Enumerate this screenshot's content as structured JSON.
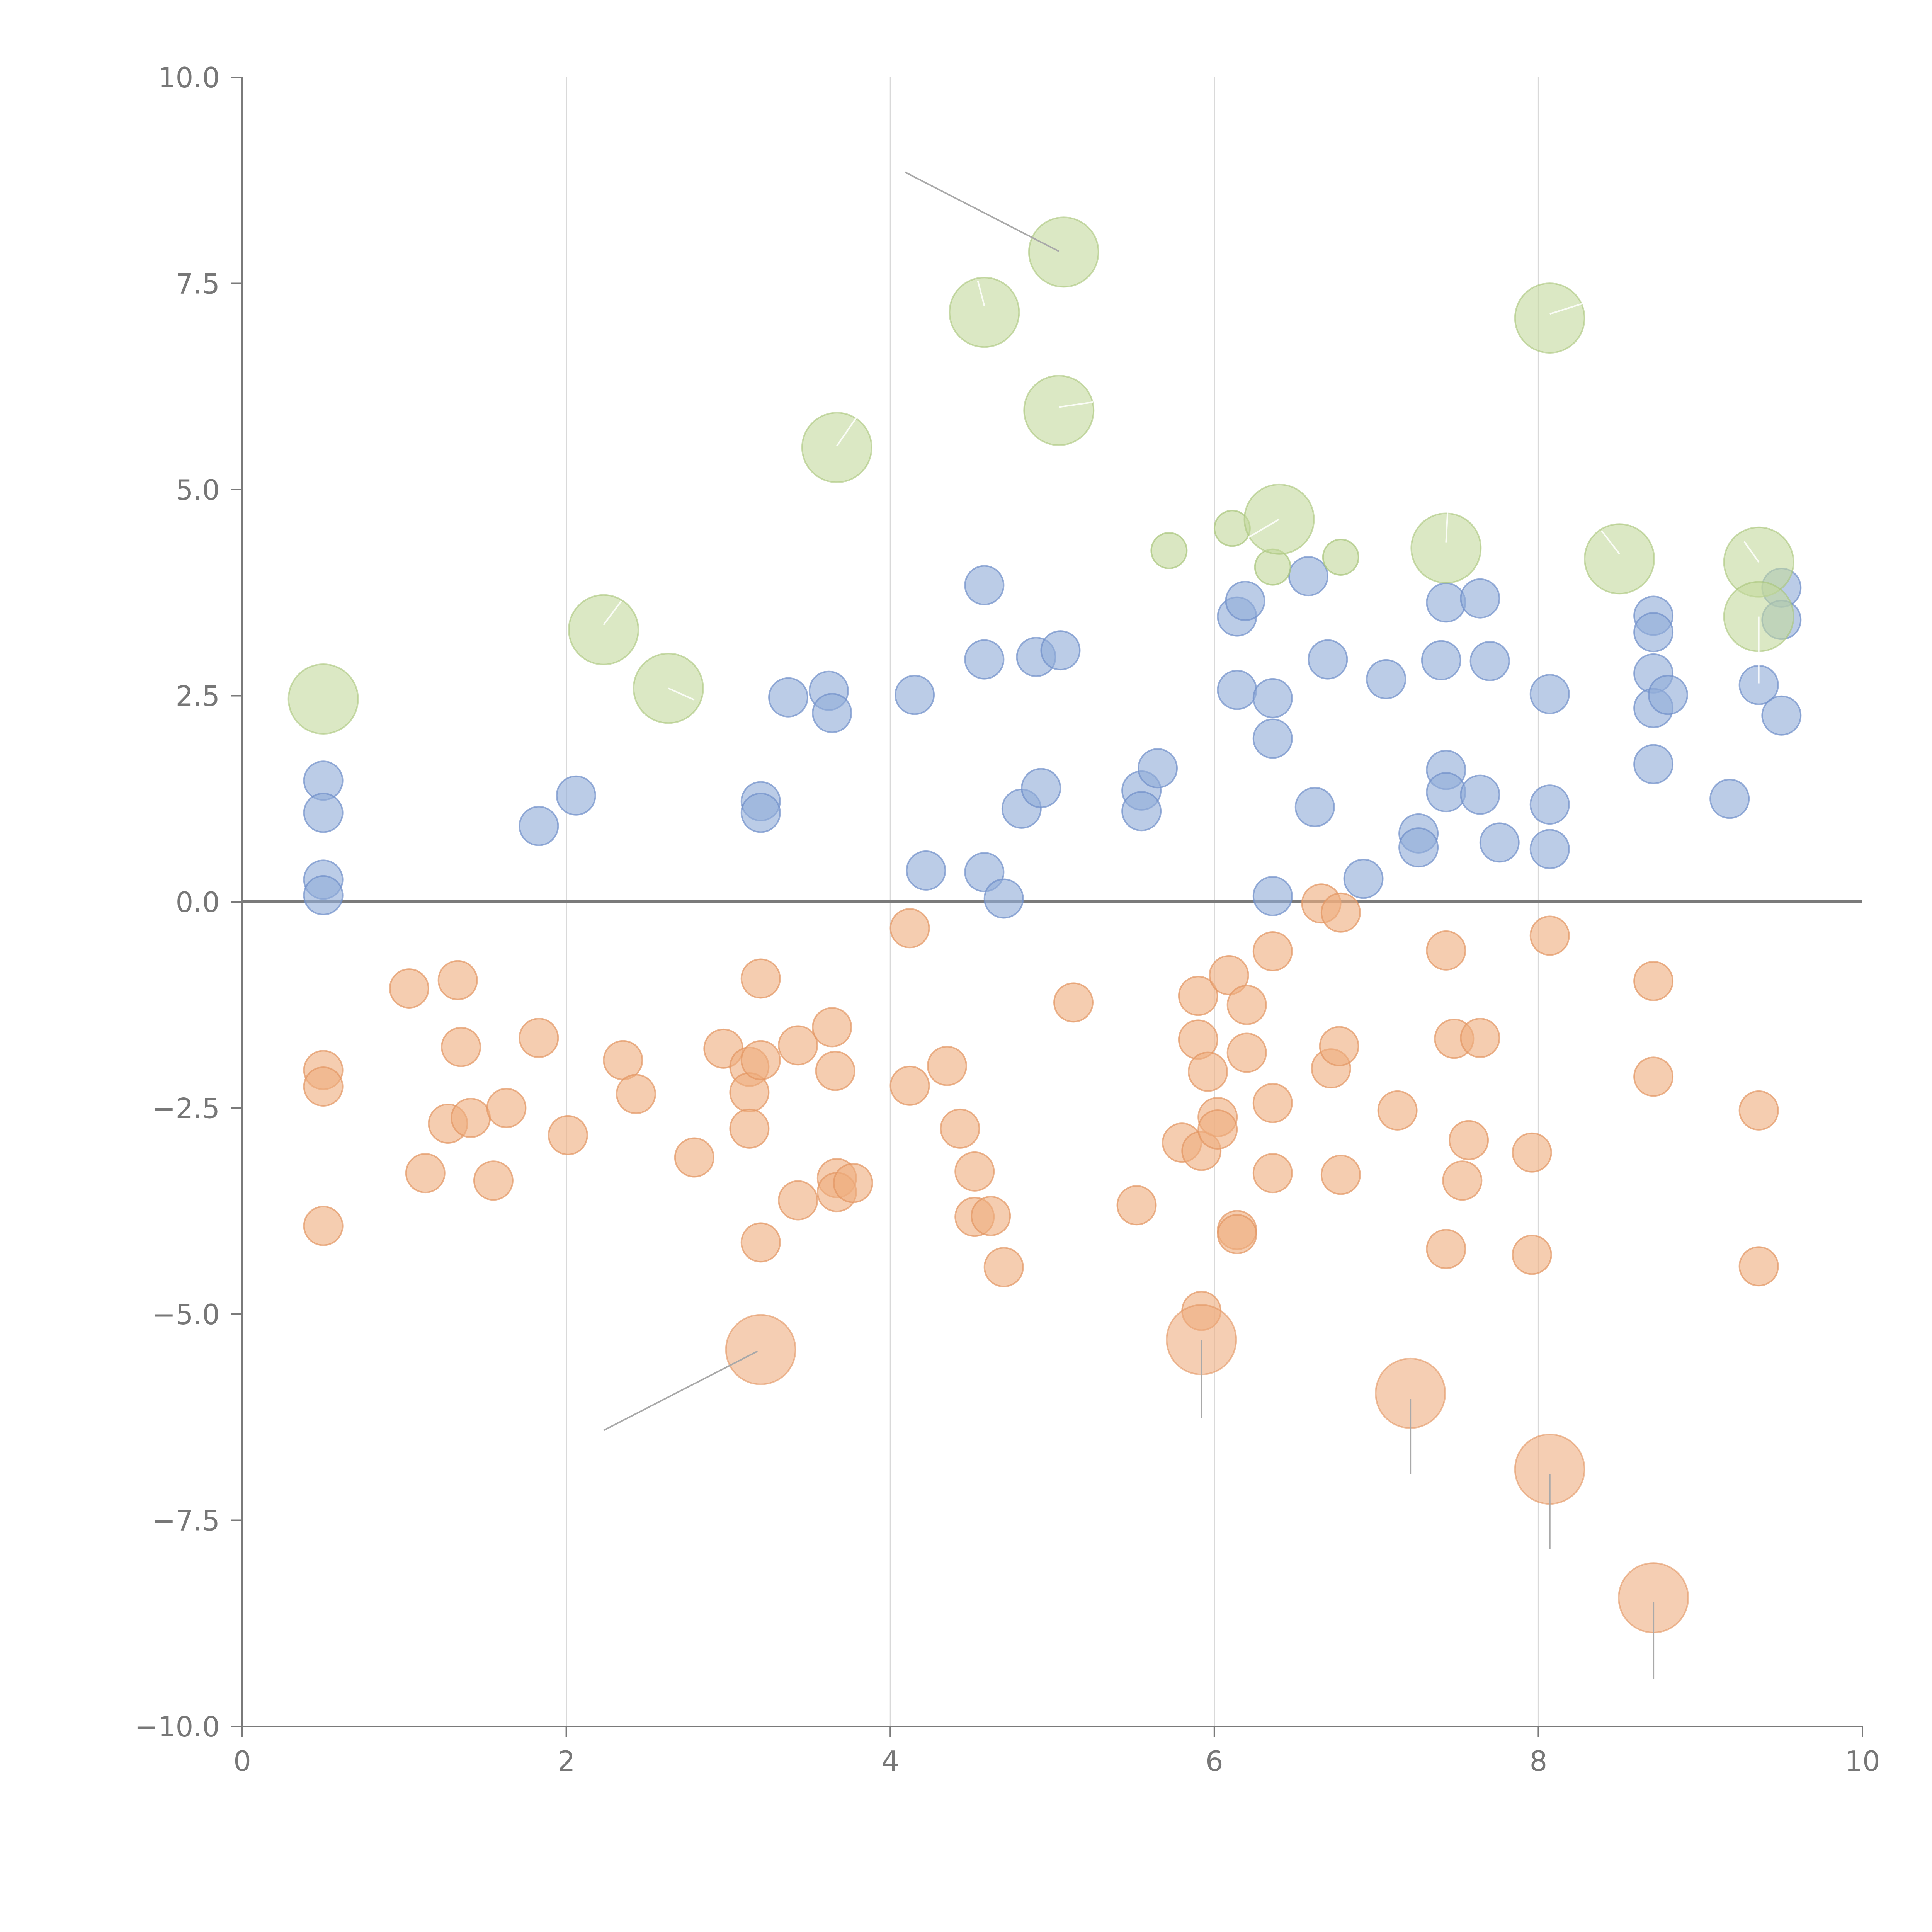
{
  "chart_data": {
    "type": "scatter",
    "title": "",
    "xlabel": "",
    "ylabel": "",
    "xlim": [
      0,
      10
    ],
    "ylim": [
      -10,
      10
    ],
    "x_ticks": [
      "0",
      "2",
      "4",
      "6",
      "8",
      "10"
    ],
    "y_ticks": [
      "−10.0",
      "−7.5",
      "−5.0",
      "−2.5",
      "0.0",
      "2.5",
      "5.0",
      "7.5",
      "10.0"
    ],
    "grid": "vertical lines at 2, 4, 6, 8",
    "zero_line": true,
    "legend": "none",
    "colors": {
      "blue": "#92acd8",
      "blue_stroke": "#6f8fc9",
      "orange": "#efae80",
      "orange_stroke": "#e39663",
      "green": "#c3d89c",
      "green_stroke": "#a8c57a"
    },
    "series": [
      {
        "color": "blue",
        "points": [
          [
            0.5,
            1.47
          ],
          [
            0.5,
            1.08
          ],
          [
            0.5,
            0.27
          ],
          [
            0.5,
            0.08
          ],
          [
            1.83,
            0.92
          ],
          [
            2.06,
            1.29
          ],
          [
            3.2,
            1.22
          ],
          [
            3.2,
            1.08
          ],
          [
            3.37,
            2.48
          ],
          [
            3.62,
            2.56
          ],
          [
            3.64,
            2.29
          ],
          [
            4.15,
            2.51
          ],
          [
            4.22,
            0.38
          ],
          [
            4.58,
            3.84
          ],
          [
            4.58,
            2.94
          ],
          [
            4.58,
            0.36
          ],
          [
            4.7,
            0.04
          ],
          [
            4.81,
            1.13
          ],
          [
            4.9,
            2.97
          ],
          [
            4.93,
            1.38
          ],
          [
            5.05,
            3.05
          ],
          [
            5.55,
            1.35
          ],
          [
            5.55,
            1.1
          ],
          [
            5.65,
            1.62
          ],
          [
            6.14,
            3.46
          ],
          [
            6.14,
            2.57
          ],
          [
            6.19,
            3.65
          ],
          [
            6.36,
            2.47
          ],
          [
            6.36,
            1.98
          ],
          [
            6.36,
            0.07
          ],
          [
            6.58,
            3.95
          ],
          [
            6.62,
            1.15
          ],
          [
            6.7,
            2.94
          ],
          [
            6.92,
            0.28
          ],
          [
            7.06,
            2.7
          ],
          [
            7.26,
            0.83
          ],
          [
            7.26,
            0.66
          ],
          [
            7.4,
            2.93
          ],
          [
            7.43,
            3.63
          ],
          [
            7.43,
            1.6
          ],
          [
            7.43,
            1.33
          ],
          [
            7.64,
            3.68
          ],
          [
            7.64,
            1.3
          ],
          [
            7.7,
            2.92
          ],
          [
            7.76,
            0.72
          ],
          [
            8.07,
            2.52
          ],
          [
            8.07,
            1.18
          ],
          [
            8.07,
            0.64
          ],
          [
            8.71,
            3.47
          ],
          [
            8.71,
            3.27
          ],
          [
            8.71,
            2.77
          ],
          [
            8.71,
            2.35
          ],
          [
            8.71,
            1.67
          ],
          [
            8.8,
            2.51
          ],
          [
            9.18,
            1.25
          ],
          [
            9.36,
            2.63
          ],
          [
            9.5,
            3.81
          ],
          [
            9.5,
            3.42
          ],
          [
            9.5,
            2.26
          ]
        ]
      },
      {
        "color": "orange",
        "points": [
          [
            0.5,
            -2.04
          ],
          [
            0.5,
            -2.24
          ],
          [
            0.5,
            -3.93
          ],
          [
            1.03,
            -1.05
          ],
          [
            1.13,
            -3.29
          ],
          [
            1.27,
            -2.69
          ],
          [
            1.33,
            -0.95
          ],
          [
            1.35,
            -1.76
          ],
          [
            1.41,
            -2.62
          ],
          [
            1.55,
            -3.38
          ],
          [
            1.63,
            -2.5
          ],
          [
            1.83,
            -1.65
          ],
          [
            2.01,
            -2.83
          ],
          [
            2.35,
            -1.92
          ],
          [
            2.43,
            -2.33
          ],
          [
            2.79,
            -3.1
          ],
          [
            2.97,
            -1.78
          ],
          [
            3.13,
            -2.0
          ],
          [
            3.13,
            -2.31
          ],
          [
            3.13,
            -2.75
          ],
          [
            3.2,
            -0.93
          ],
          [
            3.2,
            -1.92
          ],
          [
            3.2,
            -4.13
          ],
          [
            3.43,
            -1.74
          ],
          [
            3.43,
            -3.62
          ],
          [
            3.64,
            -1.52
          ],
          [
            3.66,
            -2.05
          ],
          [
            3.67,
            -3.35
          ],
          [
            3.67,
            -3.52
          ],
          [
            3.77,
            -3.41
          ],
          [
            4.12,
            -0.32
          ],
          [
            4.12,
            -2.23
          ],
          [
            4.35,
            -1.99
          ],
          [
            4.43,
            -2.75
          ],
          [
            4.52,
            -3.27
          ],
          [
            4.52,
            -3.82
          ],
          [
            4.62,
            -3.81
          ],
          [
            4.7,
            -4.43
          ],
          [
            5.13,
            -1.22
          ],
          [
            5.52,
            -3.68
          ],
          [
            5.8,
            -2.92
          ],
          [
            5.9,
            -1.14
          ],
          [
            5.9,
            -1.67
          ],
          [
            5.92,
            -3.02
          ],
          [
            5.92,
            -4.96
          ],
          [
            5.96,
            -2.06
          ],
          [
            6.02,
            -2.61
          ],
          [
            6.02,
            -2.76
          ],
          [
            6.09,
            -0.89
          ],
          [
            6.14,
            -3.98
          ],
          [
            6.14,
            -4.03
          ],
          [
            6.2,
            -1.83
          ],
          [
            6.2,
            -1.25
          ],
          [
            6.36,
            -0.6
          ],
          [
            6.36,
            -2.44
          ],
          [
            6.36,
            -3.29
          ],
          [
            6.66,
            -0.02
          ],
          [
            6.72,
            -2.02
          ],
          [
            6.77,
            -1.75
          ],
          [
            6.78,
            -0.13
          ],
          [
            6.78,
            -3.31
          ],
          [
            7.13,
            -2.53
          ],
          [
            7.43,
            -0.59
          ],
          [
            7.43,
            -4.21
          ],
          [
            7.48,
            -1.66
          ],
          [
            7.53,
            -3.38
          ],
          [
            7.57,
            -2.89
          ],
          [
            7.64,
            -1.65
          ],
          [
            7.96,
            -3.04
          ],
          [
            7.96,
            -4.28
          ],
          [
            8.07,
            -0.41
          ],
          [
            8.71,
            -0.96
          ],
          [
            8.71,
            -2.12
          ],
          [
            9.36,
            -2.53
          ],
          [
            9.36,
            -4.42
          ]
        ]
      },
      {
        "color": "green",
        "points": [
          [
            5.72,
            4.26
          ],
          [
            6.11,
            4.53
          ],
          [
            6.36,
            4.06
          ],
          [
            6.78,
            4.18
          ]
        ]
      }
    ],
    "highlighted_points": [
      {
        "color": "green",
        "x": 0.5,
        "y": 2.46
      },
      {
        "color": "green",
        "x": 2.23,
        "y": 3.3
      },
      {
        "color": "green",
        "x": 2.63,
        "y": 2.59
      },
      {
        "color": "green",
        "x": 3.67,
        "y": 5.51
      },
      {
        "color": "green",
        "x": 4.58,
        "y": 7.15
      },
      {
        "color": "green",
        "x": 5.04,
        "y": 5.96
      },
      {
        "color": "green",
        "x": 5.07,
        "y": 7.88
      },
      {
        "color": "green",
        "x": 6.4,
        "y": 4.64
      },
      {
        "color": "green",
        "x": 7.43,
        "y": 4.29
      },
      {
        "color": "green",
        "x": 8.07,
        "y": 7.08
      },
      {
        "color": "green",
        "x": 8.5,
        "y": 4.16
      },
      {
        "color": "green",
        "x": 9.36,
        "y": 4.12
      },
      {
        "color": "green",
        "x": 9.36,
        "y": 3.46
      },
      {
        "color": "orange",
        "x": 3.2,
        "y": -5.43
      },
      {
        "color": "orange",
        "x": 5.92,
        "y": -5.31
      },
      {
        "color": "orange",
        "x": 7.21,
        "y": -5.96
      },
      {
        "color": "orange",
        "x": 8.07,
        "y": -6.88
      },
      {
        "color": "orange",
        "x": 8.71,
        "y": -8.44
      }
    ],
    "leader_lines": [
      {
        "from": [
          5.04,
          7.89
        ],
        "to": [
          4.09,
          8.85
        ]
      },
      {
        "from": [
          3.18,
          -5.45
        ],
        "to": [
          2.23,
          -6.41
        ]
      },
      {
        "from": [
          5.92,
          -5.31
        ],
        "to": [
          5.92,
          -6.26
        ]
      },
      {
        "from": [
          7.21,
          -6.03
        ],
        "to": [
          7.21,
          -6.94
        ]
      },
      {
        "from": [
          8.07,
          -6.94
        ],
        "to": [
          8.07,
          -7.85
        ]
      },
      {
        "from": [
          8.71,
          -8.49
        ],
        "to": [
          8.71,
          -9.42
        ]
      }
    ],
    "inner_lines": [
      {
        "from": [
          0.5,
          2.46
        ],
        "to": [
          0.5,
          2.46
        ]
      },
      {
        "from": [
          2.23,
          3.36
        ],
        "to": [
          2.34,
          3.65
        ]
      },
      {
        "from": [
          2.63,
          2.59
        ],
        "to": [
          2.79,
          2.45
        ]
      },
      {
        "from": [
          3.67,
          5.53
        ],
        "to": [
          3.8,
          5.9
        ]
      },
      {
        "from": [
          4.58,
          7.23
        ],
        "to": [
          4.54,
          7.53
        ]
      },
      {
        "from": [
          5.04,
          6.0
        ],
        "to": [
          5.25,
          6.06
        ]
      },
      {
        "from": [
          6.4,
          4.64
        ],
        "to": [
          6.21,
          4.42
        ]
      },
      {
        "from": [
          7.43,
          4.36
        ],
        "to": [
          7.44,
          4.75
        ]
      },
      {
        "from": [
          8.07,
          7.13
        ],
        "to": [
          8.28,
          7.26
        ]
      },
      {
        "from": [
          8.5,
          4.22
        ],
        "to": [
          8.39,
          4.5
        ]
      },
      {
        "from": [
          9.36,
          4.12
        ],
        "to": [
          9.27,
          4.37
        ]
      },
      {
        "from": [
          9.36,
          3.46
        ],
        "to": [
          9.36,
          2.65
        ]
      }
    ]
  }
}
